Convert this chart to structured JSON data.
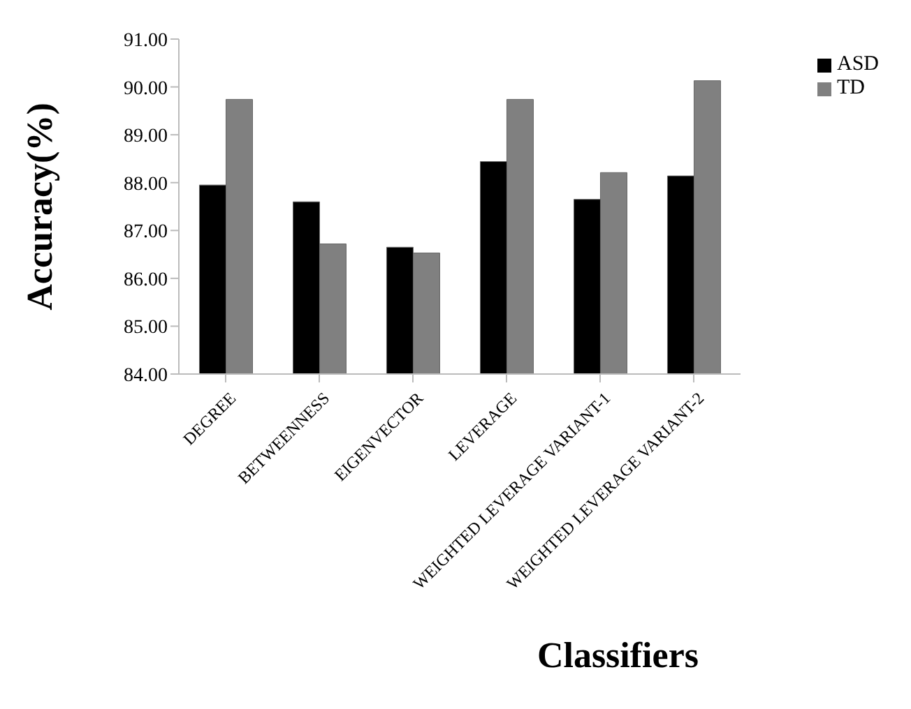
{
  "chart_data": {
    "type": "bar",
    "ylabel": "Accuracy(%)",
    "xlabel": "Classifiers",
    "categories": [
      "DEGREE",
      "BETWEENNESS",
      "EIGENVECTOR",
      "LEVERAGE",
      "WEIGHTED LEVERAGE VARIANT-1",
      "WEIGHTED LEVERAGE VARIANT-2"
    ],
    "series": [
      {
        "name": "ASD",
        "color": "#000000",
        "values": [
          87.95,
          87.6,
          86.65,
          88.44,
          87.65,
          88.14
        ]
      },
      {
        "name": "TD",
        "color": "#808080",
        "values": [
          89.74,
          86.72,
          86.53,
          89.74,
          88.21,
          90.13
        ]
      }
    ],
    "ylim": [
      84,
      91
    ],
    "yticks": [
      {
        "value": 84,
        "label": "84.00"
      },
      {
        "value": 85,
        "label": "85.00"
      },
      {
        "value": 86,
        "label": "86.00"
      },
      {
        "value": 87,
        "label": "87.00"
      },
      {
        "value": 88,
        "label": "88.00"
      },
      {
        "value": 89,
        "label": "89.00"
      },
      {
        "value": 90,
        "label": "90.00"
      },
      {
        "value": 91,
        "label": "91.00"
      }
    ],
    "grid": false,
    "legend": "top right"
  }
}
